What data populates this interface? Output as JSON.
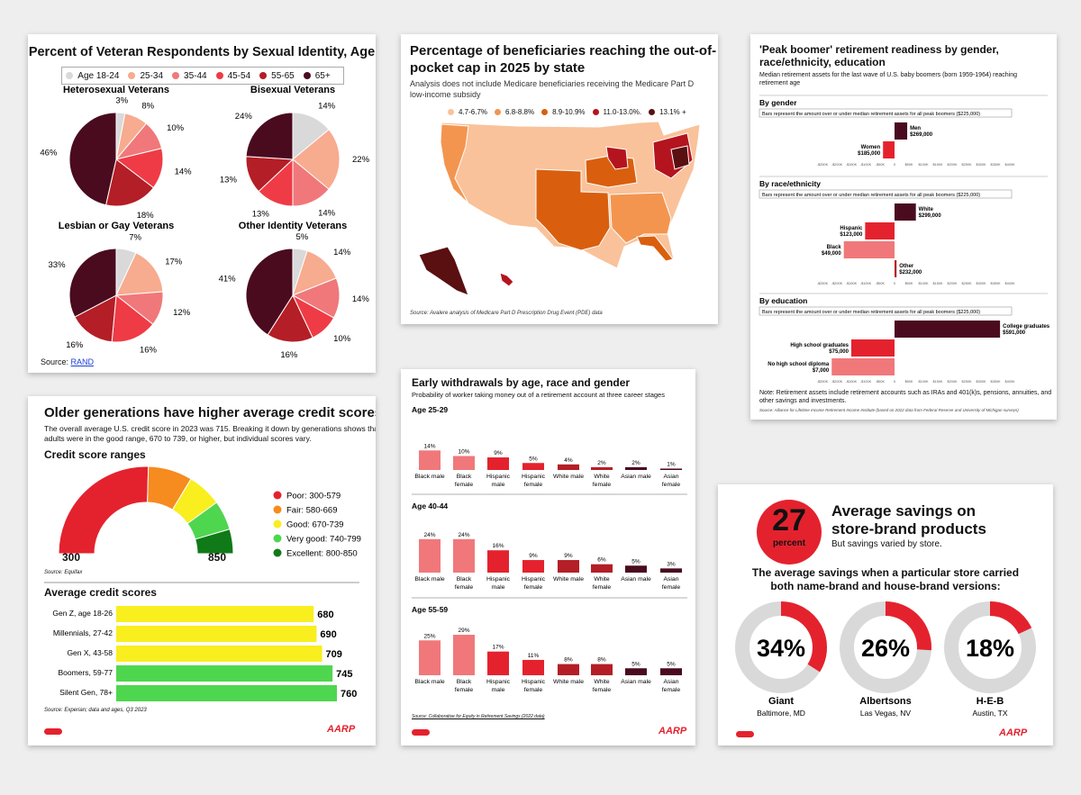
{
  "colors": {
    "accent": "#e4222e",
    "dark": "#4a0b1f",
    "card": "#ffffff",
    "bg": "#eeeeee"
  },
  "panel1": {
    "title": "Percent of Veteran Respondents by Sexual Identity, Age",
    "source_label": "Source: ",
    "source_link": "RAND",
    "chart_data": {
      "type": "pie",
      "legend": [
        "Age 18-24",
        "25-34",
        "35-44",
        "45-54",
        "55-65",
        "65+"
      ],
      "colors": [
        "#d9d9d9",
        "#f7ab8f",
        "#f0787a",
        "#ef3b45",
        "#b41e26",
        "#4a0b1f"
      ],
      "pies": [
        {
          "title": "Heterosexual Veterans",
          "values": [
            3,
            8,
            10,
            14,
            18,
            46
          ],
          "labels": [
            "3%",
            "8%",
            "10%",
            "14%",
            "18%",
            "46%"
          ]
        },
        {
          "title": "Bisexual Veterans",
          "values": [
            14,
            22,
            14,
            13,
            13,
            24
          ],
          "labels": [
            "14%",
            "22%",
            "14%",
            "13%",
            "13%",
            "24%"
          ]
        },
        {
          "title": "Lesbian or Gay Veterans",
          "values": [
            7,
            17,
            12,
            16,
            16,
            33
          ],
          "labels": [
            "7%",
            "17%",
            "12%",
            "16%",
            "16%",
            "33%"
          ]
        },
        {
          "title": "Other Identity Veterans",
          "values": [
            5,
            14,
            14,
            10,
            16,
            41
          ],
          "labels": [
            "5%",
            "14%",
            "14%",
            "10%",
            "16%",
            "41%"
          ]
        }
      ]
    }
  },
  "panel2": {
    "title_line1": "Percentage of beneficiaries reaching the out-of-",
    "title_line2": "pocket cap in 2025 by state",
    "subtitle_line1": "Analysis does not include Medicare beneficiaries receiving the Medicare Part D",
    "subtitle_line2": "low-income subsidy",
    "source": "Source: Avalere analysis of Medicare Part D Prescription Drug Event (PDE) data",
    "chart_data": {
      "type": "map",
      "legend": [
        {
          "label": "4.7-6.7%",
          "color": "#f9c29a"
        },
        {
          "label": "6.8-8.8%",
          "color": "#f4954f"
        },
        {
          "label": "8.9-10.9%",
          "color": "#d95f0e"
        },
        {
          "label": "11.0-13.0%.",
          "color": "#b4141e"
        },
        {
          "label": "13.1% +",
          "color": "#5a0f10"
        }
      ]
    }
  },
  "panel3": {
    "title_line1": "'Peak boomer' retirement readiness by gender,",
    "title_line2": "race/ethnicity, education",
    "subtitle_line1": "Median retirement assets for the last wave of U.S. baby boomers (born 1959-1964) reaching",
    "subtitle_line2": "retirement age",
    "bars_note": "Bars represent the amount over or under median retirement assets for all peak boomers ($225,000)",
    "axis_ticks": [
      "-$250K",
      "-$200K",
      "-$150K",
      "-$100K",
      "-$50K",
      "0",
      "$50K",
      "$100K",
      "$150K",
      "$200K",
      "$250K",
      "$300K",
      "$350K",
      "$400K"
    ],
    "note_line1": "Note: Retirement assets include retirement accounts such as IRAs and 401(k)s, pensions, annuities, and",
    "note_line2": "other savings and investments.",
    "source": "Source: Alliance for Lifetime Income Retirement Income Institute (based on 2022 data from Federal Reserve and University of Michigan surveys)",
    "chart_data": {
      "type": "bar",
      "median": 225000,
      "sections": [
        {
          "title": "By gender",
          "bars": [
            {
              "name": "Men",
              "label": "$269,000",
              "value": 269000,
              "color": "#4a0b1f"
            },
            {
              "name": "Women",
              "label": "$185,000",
              "value": 185000,
              "color": "#e4222e"
            }
          ]
        },
        {
          "title": "By race/ethnicity",
          "bars": [
            {
              "name": "White",
              "label": "$299,000",
              "value": 299000,
              "color": "#4a0b1f"
            },
            {
              "name": "Hispanic",
              "label": "$123,000",
              "value": 123000,
              "color": "#e4222e"
            },
            {
              "name": "Black",
              "label": "$49,000",
              "value": 49000,
              "color": "#f0787a"
            },
            {
              "name": "Other",
              "label": "$232,000",
              "value": 232000,
              "color": "#b41e26"
            }
          ]
        },
        {
          "title": "By education",
          "bars": [
            {
              "name": "College graduates",
              "label": "$591,000",
              "value": 591000,
              "color": "#4a0b1f"
            },
            {
              "name": "High school graduates",
              "label": "$75,000",
              "value": 75000,
              "color": "#e4222e"
            },
            {
              "name": "No high school diploma",
              "label": "$7,000",
              "value": 7000,
              "color": "#f0787a"
            }
          ]
        }
      ]
    }
  },
  "panel4": {
    "title": "Older generations have higher average credit scores",
    "intro_line1": "The overall average U.S. credit score in 2023 was 715. Breaking it down by generations shows that all",
    "intro_line2": "adults were in the good range, 670 to 739, or higher, but individual scores vary.",
    "ranges_title": "Credit score ranges",
    "gauge_min": "300",
    "gauge_max": "850",
    "ranges_source": "Source: Equifax",
    "averages_title": "Average credit scores",
    "averages_source": "Source: Experian; data and ages, Q3 2023",
    "logo": "AARP",
    "chart_data": {
      "type": "bar",
      "ranges": [
        {
          "label": "Poor: 300-579",
          "from": 300,
          "to": 579,
          "color": "#e4222e"
        },
        {
          "label": "Fair: 580-669",
          "from": 580,
          "to": 669,
          "color": "#f68b1f"
        },
        {
          "label": "Good: 670-739",
          "from": 670,
          "to": 739,
          "color": "#f9ee1e"
        },
        {
          "label": "Very good: 740-799",
          "from": 740,
          "to": 799,
          "color": "#4fd64f"
        },
        {
          "label": "Excellent: 800-850",
          "from": 800,
          "to": 850,
          "color": "#0f7a17"
        }
      ],
      "categories": [
        "Gen Z, age 18-26",
        "Millennials, 27-42",
        "Gen X, 43-58",
        "Boomers, 59-77",
        "Silent Gen, 78+"
      ],
      "values": [
        680,
        690,
        709,
        745,
        760
      ],
      "bar_colors": [
        "#f9ee1e",
        "#f9ee1e",
        "#f9ee1e",
        "#4fd64f",
        "#4fd64f"
      ]
    }
  },
  "panel5": {
    "title": "Early withdrawals by age, race and gender",
    "subtitle": "Probability of worker taking money out of a retirement account at three career stages",
    "source": "Source: Collaborative for Equity in Retirement Savings (2022 data)",
    "logo": "AARP",
    "chart_data": {
      "type": "bar",
      "categories": [
        [
          "Black male"
        ],
        [
          "Black",
          "female"
        ],
        [
          "Hispanic",
          "male"
        ],
        [
          "Hispanic",
          "female"
        ],
        [
          "White male"
        ],
        [
          "White",
          "female"
        ],
        [
          "Asian male"
        ],
        [
          "Asian",
          "female"
        ]
      ],
      "colors": [
        "#f0787a",
        "#f0787a",
        "#e4222e",
        "#e4222e",
        "#b41e26",
        "#b41e26",
        "#4a0b1f",
        "#4a0b1f"
      ],
      "groups": [
        {
          "title": "Age 25-29",
          "values": [
            14,
            10,
            9,
            5,
            4,
            2,
            2,
            1
          ],
          "labels": [
            "14%",
            "10%",
            "9%",
            "5%",
            "4%",
            "2%",
            "2%",
            "1%"
          ]
        },
        {
          "title": "Age 40-44",
          "values": [
            24,
            24,
            16,
            9,
            9,
            6,
            5,
            3
          ],
          "labels": [
            "24%",
            "24%",
            "16%",
            "9%",
            "9%",
            "6%",
            "5%",
            "3%"
          ]
        },
        {
          "title": "Age 55-59",
          "values": [
            25,
            29,
            17,
            11,
            8,
            8,
            5,
            5
          ],
          "labels": [
            "25%",
            "29%",
            "17%",
            "11%",
            "8%",
            "8%",
            "5%",
            "5%"
          ]
        }
      ]
    }
  },
  "panel6": {
    "big_number": "27",
    "big_unit": "percent",
    "title_line1": "Average savings on",
    "title_line2": "store-brand products",
    "subtitle": "But savings varied by store.",
    "headline_line1": "The average savings when a particular store carried",
    "headline_line2": "both name-brand and house-brand versions:",
    "logo": "AARP",
    "chart_data": {
      "type": "pie",
      "stores": [
        {
          "value": 34,
          "label": "34%",
          "store": "Giant",
          "location": "Baltimore, MD"
        },
        {
          "value": 26,
          "label": "26%",
          "store": "Albertsons",
          "location": "Las Vegas, NV"
        },
        {
          "value": 18,
          "label": "18%",
          "store": "H-E-B",
          "location": "Austin, TX"
        }
      ]
    }
  }
}
